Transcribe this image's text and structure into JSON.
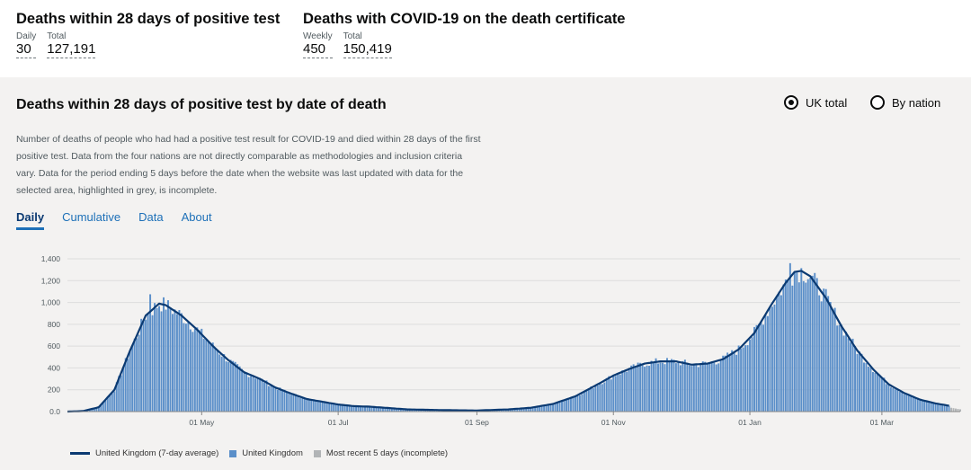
{
  "headlines": [
    {
      "title": "Deaths within 28 days of positive test",
      "metrics": [
        {
          "label": "Daily",
          "value": "30"
        },
        {
          "label": "Total",
          "value": "127,191"
        }
      ]
    },
    {
      "title": "Deaths with COVID-19 on the death certificate",
      "metrics": [
        {
          "label": "Weekly",
          "value": "450"
        },
        {
          "label": "Total",
          "value": "150,419"
        }
      ]
    }
  ],
  "card": {
    "title": "Deaths within 28 days of positive test by date of death",
    "radio": {
      "uk_total": "UK total",
      "by_nation": "By nation",
      "selected": "uk_total"
    },
    "description": "Number of deaths of people who had had a positive test result for COVID-19 and died within 28 days of the first positive test. Data from the four nations are not directly comparable as methodologies and inclusion criteria vary. Data for the period ending 5 days before the date when the website was last updated with data for the selected area, highlighted in grey, is incomplete.",
    "tabs": [
      "Daily",
      "Cumulative",
      "Data",
      "About"
    ],
    "active_tab": "Daily"
  },
  "colors": {
    "bar": "#5b8fc9",
    "line": "#0b3a72",
    "incomplete": "#b1b4b6"
  },
  "chart_data": {
    "type": "bar",
    "title": "",
    "xlabel": "",
    "ylabel": "",
    "ylim": [
      0,
      1400
    ],
    "y_ticks": [
      0,
      200,
      400,
      600,
      800,
      1000,
      1200,
      1400
    ],
    "y_tick_labels": [
      "0.0",
      "200",
      "400",
      "600",
      "800",
      "1,000",
      "1,200",
      "1,400"
    ],
    "x_tick_labels": [
      "01 May",
      "01 Jul",
      "01 Sep",
      "01 Nov",
      "01 Jan",
      "01 Mar"
    ],
    "x_tick_dates": [
      "2020-05-01",
      "2020-07-01",
      "2020-09-01",
      "2020-11-01",
      "2021-01-01",
      "2021-03-01"
    ],
    "x_range": [
      "2020-03-02",
      "2021-04-05"
    ],
    "grid": true,
    "legend": "bottom",
    "series": [
      {
        "name": "United Kingdom (7-day average)",
        "type": "line",
        "keypoints": [
          [
            "2020-03-02",
            0
          ],
          [
            "2020-03-09",
            5
          ],
          [
            "2020-03-16",
            40
          ],
          [
            "2020-03-23",
            200
          ],
          [
            "2020-03-30",
            560
          ],
          [
            "2020-04-06",
            880
          ],
          [
            "2020-04-12",
            990
          ],
          [
            "2020-04-15",
            975
          ],
          [
            "2020-04-22",
            880
          ],
          [
            "2020-04-29",
            750
          ],
          [
            "2020-05-06",
            600
          ],
          [
            "2020-05-13",
            470
          ],
          [
            "2020-05-20",
            360
          ],
          [
            "2020-05-27",
            300
          ],
          [
            "2020-06-03",
            220
          ],
          [
            "2020-06-10",
            165
          ],
          [
            "2020-06-17",
            115
          ],
          [
            "2020-06-24",
            90
          ],
          [
            "2020-07-01",
            65
          ],
          [
            "2020-07-08",
            50
          ],
          [
            "2020-07-15",
            45
          ],
          [
            "2020-07-22",
            35
          ],
          [
            "2020-08-01",
            20
          ],
          [
            "2020-08-15",
            14
          ],
          [
            "2020-09-01",
            10
          ],
          [
            "2020-09-15",
            20
          ],
          [
            "2020-09-25",
            35
          ],
          [
            "2020-10-05",
            70
          ],
          [
            "2020-10-15",
            140
          ],
          [
            "2020-10-25",
            250
          ],
          [
            "2020-11-01",
            330
          ],
          [
            "2020-11-08",
            390
          ],
          [
            "2020-11-15",
            440
          ],
          [
            "2020-11-22",
            460
          ],
          [
            "2020-11-29",
            460
          ],
          [
            "2020-12-06",
            430
          ],
          [
            "2020-12-13",
            440
          ],
          [
            "2020-12-20",
            480
          ],
          [
            "2020-12-27",
            570
          ],
          [
            "2021-01-03",
            720
          ],
          [
            "2021-01-10",
            960
          ],
          [
            "2021-01-17",
            1180
          ],
          [
            "2021-01-21",
            1280
          ],
          [
            "2021-01-24",
            1290
          ],
          [
            "2021-01-28",
            1240
          ],
          [
            "2021-02-04",
            1040
          ],
          [
            "2021-02-11",
            780
          ],
          [
            "2021-02-18",
            560
          ],
          [
            "2021-02-25",
            390
          ],
          [
            "2021-03-04",
            250
          ],
          [
            "2021-03-11",
            170
          ],
          [
            "2021-03-18",
            110
          ],
          [
            "2021-03-25",
            75
          ],
          [
            "2021-04-01",
            50
          ],
          [
            "2021-04-05",
            30
          ]
        ]
      },
      {
        "name": "United Kingdom",
        "type": "bar",
        "values": "daily bars around the 7-day average",
        "peaks": [
          [
            "2020-04-08",
            1075
          ],
          [
            "2021-01-19",
            1360
          ]
        ]
      },
      {
        "name": "Most recent 5 days (incomplete)",
        "type": "bar"
      }
    ]
  }
}
